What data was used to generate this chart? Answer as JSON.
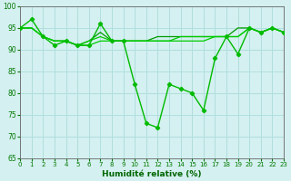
{
  "series": [
    {
      "x": [
        0,
        1,
        2,
        3,
        4,
        5,
        6,
        7,
        8,
        9,
        10,
        11,
        12,
        13,
        14,
        15,
        16,
        17,
        18,
        19,
        20,
        21,
        22,
        23
      ],
      "y": [
        95,
        97,
        93,
        91,
        92,
        91,
        91,
        96,
        92,
        92,
        82,
        73,
        72,
        82,
        81,
        80,
        76,
        88,
        93,
        89,
        95,
        94,
        95,
        94
      ],
      "color": "#00bb00",
      "marker": "D",
      "markersize": 2.2,
      "linewidth": 1.0,
      "zorder": 5
    },
    {
      "x": [
        0,
        1,
        2,
        3,
        4,
        5,
        6,
        7,
        8,
        9,
        10,
        11,
        12,
        13,
        14,
        15,
        16,
        17,
        18,
        19,
        20,
        21,
        22,
        23
      ],
      "y": [
        95,
        95,
        93,
        92,
        92,
        91,
        91,
        92,
        92,
        92,
        92,
        92,
        92,
        92,
        92,
        92,
        92,
        93,
        93,
        93,
        95,
        94,
        95,
        94
      ],
      "color": "#00cc00",
      "marker": null,
      "markersize": 0,
      "linewidth": 0.9,
      "zorder": 3
    },
    {
      "x": [
        0,
        1,
        2,
        3,
        4,
        5,
        6,
        7,
        8,
        9,
        10,
        11,
        12,
        13,
        14,
        15,
        16,
        17,
        18,
        19,
        20,
        21,
        22,
        23
      ],
      "y": [
        95,
        95,
        93,
        92,
        92,
        91,
        92,
        93,
        92,
        92,
        92,
        92,
        92,
        92,
        93,
        93,
        93,
        93,
        93,
        93,
        95,
        94,
        95,
        94
      ],
      "color": "#00cc00",
      "marker": null,
      "markersize": 0,
      "linewidth": 0.9,
      "zorder": 3
    },
    {
      "x": [
        0,
        1,
        2,
        3,
        4,
        5,
        6,
        7,
        8,
        9,
        10,
        11,
        12,
        13,
        14,
        15,
        16,
        17,
        18,
        19,
        20,
        21,
        22,
        23
      ],
      "y": [
        95,
        95,
        93,
        92,
        92,
        91,
        92,
        94,
        92,
        92,
        92,
        92,
        93,
        93,
        93,
        93,
        93,
        93,
        93,
        95,
        95,
        94,
        95,
        94
      ],
      "color": "#009900",
      "marker": null,
      "markersize": 0,
      "linewidth": 0.9,
      "zorder": 2
    }
  ],
  "xlim": [
    0,
    23
  ],
  "ylim": [
    65,
    100
  ],
  "yticks": [
    65,
    70,
    75,
    80,
    85,
    90,
    95,
    100
  ],
  "xticks": [
    0,
    1,
    2,
    3,
    4,
    5,
    6,
    7,
    8,
    9,
    10,
    11,
    12,
    13,
    14,
    15,
    16,
    17,
    18,
    19,
    20,
    21,
    22,
    23
  ],
  "xlabel": "Humidité relative (%)",
  "background_color": "#d4f0f0",
  "grid_color": "#b0dede",
  "tick_color": "#007700",
  "label_color": "#006600",
  "axis_color": "#666666",
  "figwidth": 3.2,
  "figheight": 2.0,
  "dpi": 100
}
